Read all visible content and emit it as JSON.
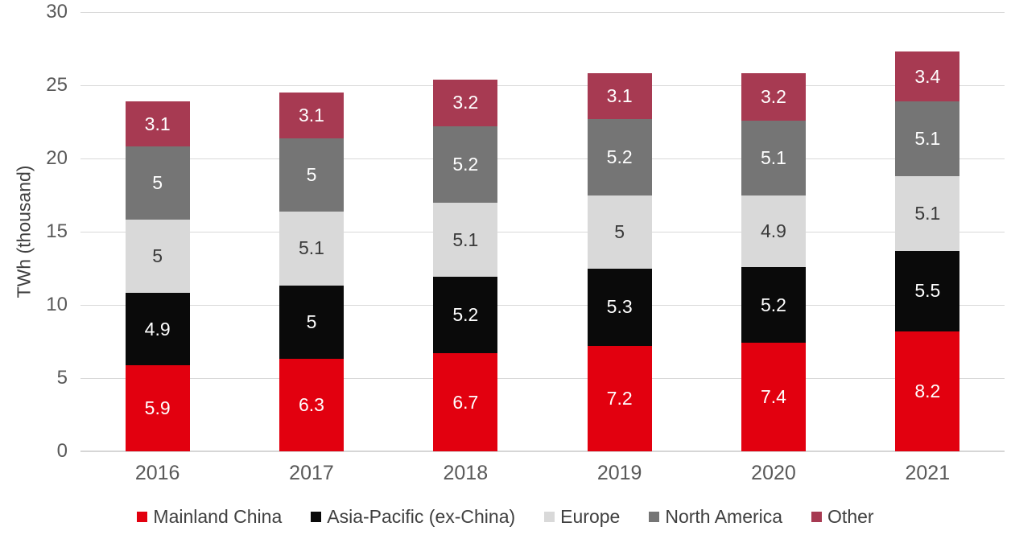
{
  "chart_data": {
    "type": "bar",
    "stacked": true,
    "title": "",
    "xlabel": "",
    "ylabel": "TWh (thousand)",
    "ylim": [
      0,
      30
    ],
    "y_ticks": [
      0,
      5,
      10,
      15,
      20,
      25,
      30
    ],
    "grid": true,
    "legend_position": "bottom",
    "categories": [
      "2016",
      "2017",
      "2018",
      "2019",
      "2020",
      "2021"
    ],
    "series": [
      {
        "name": "Mainland China",
        "color": "#e2000f",
        "label_color": "#ffffff",
        "values": [
          5.9,
          6.3,
          6.7,
          7.2,
          7.4,
          8.2
        ]
      },
      {
        "name": "Asia-Pacific (ex-China)",
        "color": "#0a0a0a",
        "label_color": "#ffffff",
        "values": [
          4.9,
          5,
          5.2,
          5.3,
          5.2,
          5.5
        ]
      },
      {
        "name": "Europe",
        "color": "#d9d9d9",
        "label_color": "#3a3a3a",
        "values": [
          5,
          5.1,
          5.1,
          5,
          4.9,
          5.1
        ]
      },
      {
        "name": "North America",
        "color": "#757575",
        "label_color": "#ffffff",
        "values": [
          5,
          5,
          5.2,
          5.2,
          5.1,
          5.1
        ]
      },
      {
        "name": "Other",
        "color": "#a73a52",
        "label_color": "#ffffff",
        "values": [
          3.1,
          3.1,
          3.2,
          3.1,
          3.2,
          3.4
        ]
      }
    ],
    "colors": {
      "gridline": "#d9d9d9",
      "axis_line": "#d6d6d6",
      "tick_text": "#595959",
      "legend_text": "#404040"
    }
  }
}
